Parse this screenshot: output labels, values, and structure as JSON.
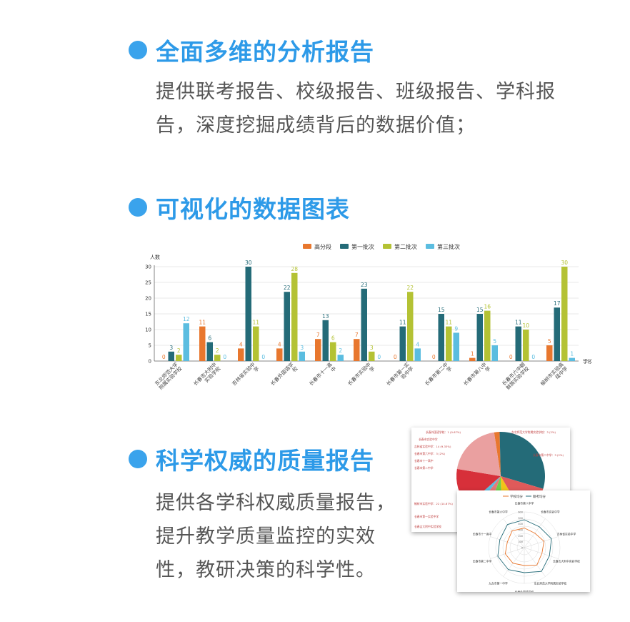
{
  "sections": [
    {
      "title": "全面多维的分析报告",
      "lines": [
        "提供联考报告、校级报告、班级报告、学科报",
        "告，深度挖掘成绩背后的数据价值；"
      ]
    },
    {
      "title": "可视化的数据图表"
    },
    {
      "title": "科学权威的质量报告",
      "lines": [
        "提供各学科权威质量报告，",
        "提升教学质量监控的实效",
        "性，教研决策的科学性。"
      ]
    }
  ],
  "chart_data": {
    "type": "bar",
    "ylabel": "人数",
    "xlabel": "学校",
    "ylim": [
      0,
      30
    ],
    "yticks": [
      0,
      5,
      10,
      15,
      20,
      25,
      30
    ],
    "categories": [
      "东北师范大学附属实验学校",
      "长春吉大附中实验学校",
      "吉林省实验中学",
      "长春外国语学校",
      "长春市十一高中",
      "长春市实验中学",
      "长春市第一实验中学",
      "长春市第二中学",
      "长春市第八中学",
      "长春市六中朝鲜族实验学校",
      "榆树市实验高级中学"
    ],
    "series": [
      {
        "name": "高分段",
        "color": "#e8772e",
        "values": [
          0,
          11,
          4,
          4,
          7,
          7,
          0,
          0,
          1,
          0,
          5
        ]
      },
      {
        "name": "第一批次",
        "color": "#246b78",
        "values": [
          3,
          6,
          30,
          22,
          13,
          23,
          11,
          15,
          15,
          11,
          17
        ]
      },
      {
        "name": "第二批次",
        "color": "#b4c234",
        "values": [
          2,
          2,
          11,
          28,
          6,
          3,
          22,
          11,
          16,
          10,
          30
        ]
      },
      {
        "name": "第三批次",
        "color": "#5bbde0",
        "values": [
          12,
          0,
          0,
          3,
          2,
          0,
          4,
          9,
          5,
          0,
          1
        ]
      }
    ]
  },
  "pie_thumb": {
    "labels": [
      "东北师范大学附属实验学校：3 (2%)",
      "长春市第八中学：3 (2%)",
      "长春外国语学校：1 (0.67%)",
      "长春市实验中学",
      "吉林省实验中学：14 (9.33%)",
      "长春市第六中学：3 (2%)",
      "长春市十一高中",
      "长春市第二中学",
      "榆树市实验中学：22 (14.67%)",
      "长春市第一实验中学",
      "长春吉大附中实验学校"
    ],
    "colors": [
      "#e8772e",
      "#246b78",
      "#d7303a",
      "#f2c518",
      "#6fcf4a",
      "#e47a7a",
      "#5bbde0",
      "#b4c234"
    ]
  },
  "radar_thumb": {
    "legend": [
      "学校均分",
      "联考均分"
    ],
    "axes": [
      "长春市第八中学",
      "长春市实验中学",
      "吉林省实验中学",
      "长春吉大附中实验学校",
      "东北师范大学附属实验学校",
      "长春外国语学校",
      "九台市第一中学",
      "长春市第二中学",
      "长春市十一高中",
      "长春市第六中学"
    ],
    "ticks": [
      "600",
      "500",
      "400",
      "300",
      "200",
      "100",
      "0"
    ]
  }
}
